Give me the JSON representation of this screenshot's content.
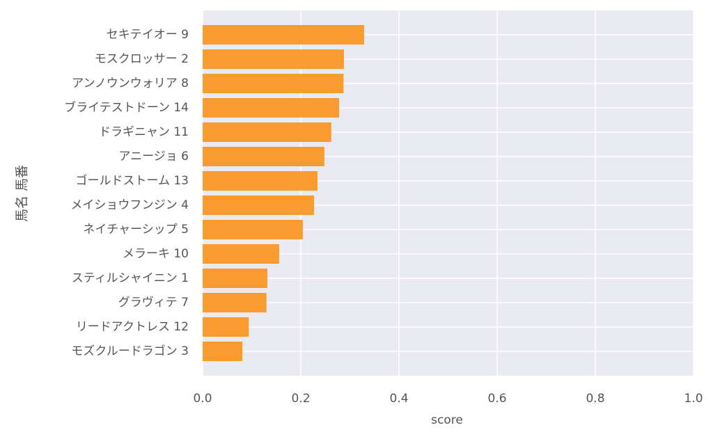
{
  "chart_data": {
    "type": "barh",
    "xlabel": "score",
    "ylabel": "馬名 馬番",
    "categories": [
      "セキテイオー 9",
      "モスクロッサー 2",
      "アンノウンウォリア 8",
      "ブライテストドーン 14",
      "ドラギニャン 11",
      "アニージョ 6",
      "ゴールドストーム 13",
      "メイショウフンジン 4",
      "ネイチャーシップ 5",
      "メラーキ 10",
      "スティルシャイニン 1",
      "グラヴィテ 7",
      "リードアクトレス 12",
      "モズクルードラゴン 3"
    ],
    "values": [
      0.329,
      0.288,
      0.287,
      0.278,
      0.262,
      0.248,
      0.234,
      0.227,
      0.204,
      0.156,
      0.132,
      0.13,
      0.094,
      0.081
    ],
    "color": "#f99b2e",
    "xlim": [
      0,
      1
    ],
    "xticks": [
      {
        "value": 0,
        "label": "0.0"
      },
      0.2,
      0.4,
      0.6,
      0.8,
      {
        "value": 1,
        "label": "1.0"
      }
    ],
    "grid": true
  }
}
